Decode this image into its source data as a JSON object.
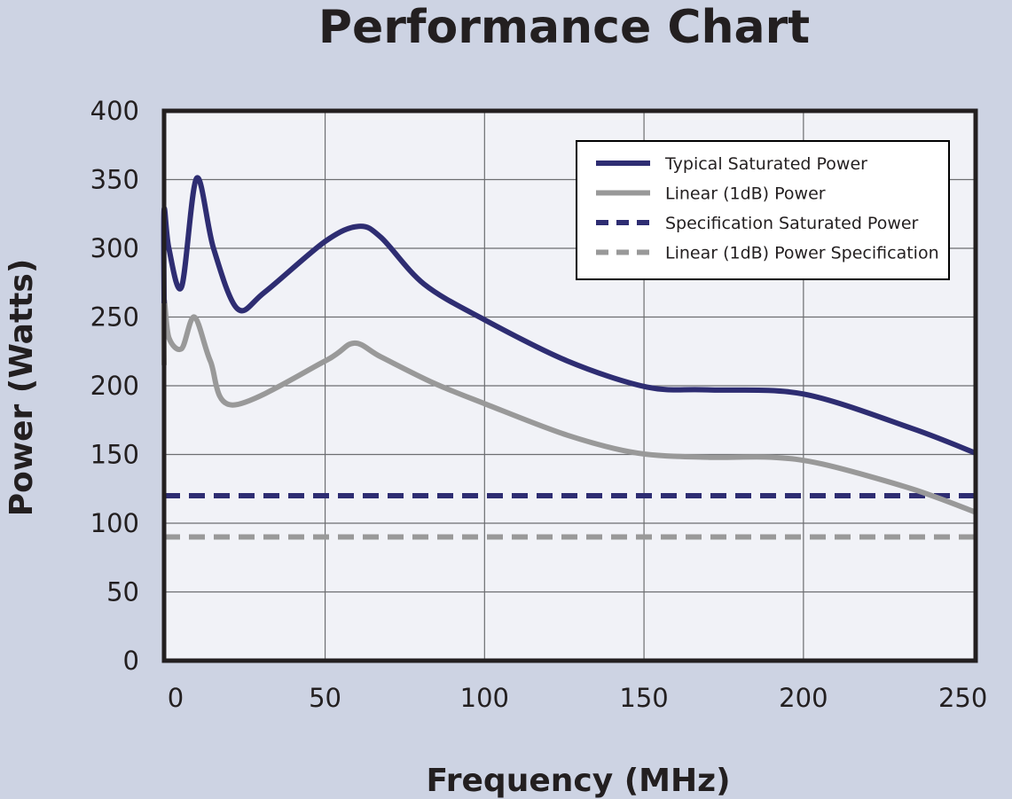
{
  "chart_data": {
    "type": "line",
    "title": "Performance Chart",
    "xlabel": "Frequency (MHz)",
    "ylabel": "Power (Watts)",
    "xlim": [
      -0.5,
      254
    ],
    "ylim": [
      0,
      400
    ],
    "xticks": [
      0,
      50,
      100,
      150,
      200,
      250
    ],
    "yticks": [
      0,
      50,
      100,
      150,
      200,
      250,
      300,
      350,
      400
    ],
    "grid": true,
    "legend_position": "top-right",
    "series": [
      {
        "name": "Typical Saturated Power",
        "color": "#2e2d72",
        "dash": false,
        "x": [
          -0.5,
          -0.5,
          1,
          5,
          9.7,
          15,
          22.5,
          31,
          50,
          60.5,
          67.5,
          81,
          100,
          126,
          151,
          170,
          200,
          234,
          254
        ],
        "y": [
          260,
          328,
          300,
          272,
          351,
          300,
          256,
          268,
          305,
          316,
          308,
          274,
          248,
          218,
          199,
          197,
          194,
          169,
          151
        ]
      },
      {
        "name": "Linear (1dB) Power",
        "color": "#999999",
        "dash": false,
        "x": [
          -0.5,
          -0.5,
          1,
          5,
          9,
          14,
          21,
          50,
          59,
          67.5,
          84,
          100,
          126,
          148,
          170,
          190,
          206,
          234,
          254
        ],
        "y": [
          215,
          262,
          235,
          227,
          250,
          218,
          186,
          218,
          231,
          221,
          202,
          187,
          164,
          151,
          148,
          148,
          143,
          125,
          108
        ]
      },
      {
        "name": "Specification Saturated Power",
        "color": "#2e2d72",
        "dash": true,
        "x": [
          -0.5,
          254
        ],
        "y": [
          120,
          120
        ]
      },
      {
        "name": "Linear (1dB) Power Specification",
        "color": "#999999",
        "dash": true,
        "x": [
          -0.5,
          254
        ],
        "y": [
          90,
          90
        ]
      }
    ]
  }
}
